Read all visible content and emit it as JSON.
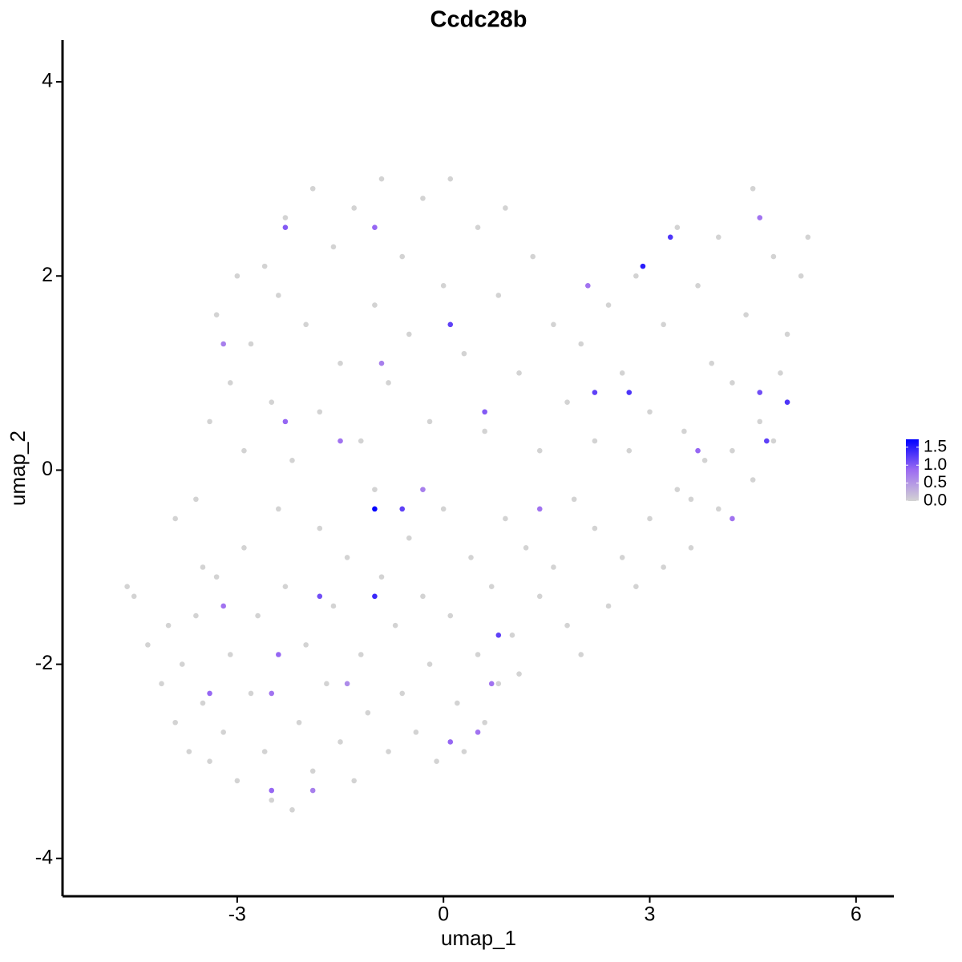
{
  "chart_data": {
    "type": "scatter",
    "title": "Ccdc28b",
    "x_label": "umap_1",
    "y_label": "umap_2",
    "xlim": [
      -5.54,
      6.55
    ],
    "xticks": [
      -3,
      0,
      3,
      6
    ],
    "ylim": [
      -4.39,
      4.43
    ],
    "yticks": [
      -4,
      -2,
      0,
      2,
      4
    ],
    "color_scale": [
      "#d3d3d3",
      "#9d6cf2",
      "#0000ff"
    ],
    "color_lim": [
      0,
      1.72
    ],
    "color_ticks": [
      {
        "value": 0,
        "label": "0.0"
      },
      0.5,
      {
        "value": 1,
        "label": "1.0"
      },
      1.5
    ],
    "x": [
      -4.6,
      -4.5,
      -4.3,
      -4.1,
      -4.0,
      -3.9,
      -3.8,
      -3.7,
      -3.6,
      -3.5,
      -3.4,
      -3.3,
      -3.2,
      -3.1,
      -3.0,
      -2.9,
      -2.8,
      -2.7,
      -2.6,
      -2.5,
      -2.4,
      -2.3,
      -2.2,
      -2.1,
      -2.0,
      -1.9,
      -1.8,
      -1.7,
      -1.6,
      -1.5,
      -1.4,
      -1.3,
      -1.2,
      -1.1,
      -1.0,
      -0.9,
      -0.8,
      -0.7,
      -0.6,
      -0.5,
      -0.4,
      -0.3,
      -0.2,
      -0.1,
      0.0,
      0.1,
      0.2,
      0.3,
      0.4,
      0.5,
      0.6,
      0.7,
      0.8,
      0.9,
      1.0,
      1.1,
      1.2,
      1.4,
      1.6,
      1.8,
      2.0,
      2.2,
      2.4,
      2.6,
      2.8,
      3.0,
      3.2,
      3.4,
      3.6,
      3.8,
      4.0,
      4.2,
      4.5,
      4.8,
      5.0,
      -3.4,
      -3.3,
      -3.1,
      -3.0,
      -2.9,
      -2.8,
      -2.6,
      -2.5,
      -2.4,
      -2.3,
      -2.2,
      -2.0,
      -1.9,
      -1.8,
      -1.6,
      -1.5,
      -1.3,
      -1.2,
      -1.0,
      -0.9,
      -0.8,
      -0.6,
      -0.5,
      -0.3,
      -0.2,
      0.0,
      0.1,
      0.3,
      0.5,
      0.6,
      0.8,
      0.9,
      1.1,
      1.3,
      1.4,
      1.6,
      1.8,
      2.0,
      2.2,
      2.4,
      2.6,
      2.8,
      3.0,
      3.2,
      3.4,
      3.5,
      3.7,
      3.9,
      4.0,
      4.2,
      4.4,
      4.5,
      4.6,
      4.8,
      5.0,
      5.2,
      5.3,
      4.9,
      3.6,
      2.7,
      1.9,
      -3.9,
      -3.6,
      -3.5,
      -3.2,
      -2.3,
      -1.0,
      0.1,
      -1.5,
      -1.0,
      -0.6,
      -1.0,
      -1.8,
      -2.5,
      -3.4,
      -2.5,
      -1.9,
      0.1,
      0.8,
      0.5,
      2.1,
      2.9,
      3.3,
      2.2,
      2.7,
      4.6,
      4.7,
      5.0,
      4.6,
      3.7,
      0.6,
      -2.3,
      -0.3,
      1.4,
      -3.2,
      -2.4,
      0.7,
      -1.4,
      -0.9,
      4.2
    ],
    "y": [
      -1.2,
      -1.3,
      -1.8,
      -2.2,
      -1.6,
      -2.6,
      -2.0,
      -2.9,
      -1.5,
      -2.4,
      -3.0,
      -1.1,
      -2.7,
      -1.9,
      -3.2,
      -0.8,
      -2.3,
      -1.5,
      -2.9,
      -3.4,
      -0.4,
      -1.2,
      -3.5,
      -2.6,
      -1.8,
      -3.1,
      -0.6,
      -2.2,
      -1.4,
      -2.8,
      -0.9,
      -3.2,
      -1.9,
      -2.5,
      -0.2,
      -1.1,
      -2.9,
      -1.6,
      -2.3,
      -0.7,
      -2.7,
      -1.3,
      -2.0,
      -3.0,
      -0.4,
      -1.5,
      -2.4,
      -2.9,
      -0.9,
      -1.9,
      -2.6,
      -1.2,
      -2.2,
      -0.5,
      -1.7,
      -2.1,
      -0.8,
      -1.3,
      -1.0,
      -1.6,
      -1.9,
      -0.6,
      -1.4,
      -0.9,
      -1.2,
      -0.5,
      -1.0,
      -0.2,
      -0.8,
      0.1,
      -0.4,
      0.2,
      -0.1,
      0.3,
      0.7,
      0.5,
      1.6,
      0.9,
      2.0,
      0.2,
      1.3,
      2.1,
      0.7,
      1.8,
      2.6,
      0.1,
      1.5,
      2.9,
      0.6,
      2.3,
      1.1,
      2.7,
      0.3,
      1.7,
      3.0,
      0.9,
      2.2,
      1.4,
      2.8,
      0.5,
      1.9,
      3.0,
      1.2,
      2.5,
      0.4,
      1.8,
      2.7,
      1.0,
      2.2,
      0.2,
      1.5,
      0.7,
      1.3,
      0.3,
      1.7,
      1.0,
      2.0,
      0.6,
      1.5,
      2.5,
      0.4,
      1.9,
      1.1,
      2.4,
      0.9,
      1.6,
      2.9,
      0.5,
      2.2,
      1.4,
      2.0,
      2.4,
      1.0,
      -0.3,
      0.2,
      -0.3,
      -0.5,
      -0.3,
      -1.0,
      1.3,
      2.5,
      2.5,
      1.5,
      0.3,
      -0.4,
      -0.4,
      -1.3,
      -1.3,
      -2.3,
      -2.3,
      -3.3,
      -3.3,
      -2.8,
      -1.7,
      -2.7,
      1.9,
      2.1,
      2.4,
      0.8,
      0.8,
      0.8,
      0.3,
      0.7,
      2.6,
      0.2,
      0.6,
      0.5,
      -0.2,
      -0.4,
      -1.4,
      -1.9,
      -2.2,
      -2.2,
      1.1,
      -0.5
    ],
    "values": [
      0,
      0,
      0,
      0,
      0,
      0,
      0,
      0,
      0,
      0,
      0,
      0,
      0,
      0,
      0,
      0,
      0,
      0,
      0,
      0,
      0,
      0,
      0,
      0,
      0,
      0,
      0,
      0,
      0,
      0,
      0,
      0,
      0,
      0,
      0,
      0,
      0,
      0,
      0,
      0,
      0,
      0,
      0,
      0,
      0,
      0,
      0,
      0,
      0,
      0,
      0,
      0,
      0,
      0,
      0,
      0,
      0,
      0,
      0,
      0,
      0,
      0,
      0,
      0,
      0,
      0,
      0,
      0,
      0,
      0,
      0,
      0,
      0,
      0,
      0,
      0,
      0,
      0,
      0,
      0,
      0,
      0,
      0,
      0,
      0,
      0,
      0,
      0,
      0,
      0,
      0,
      0,
      0,
      0,
      0,
      0,
      0,
      0,
      0,
      0,
      0,
      0,
      0,
      0,
      0,
      0,
      0,
      0,
      0,
      0,
      0,
      0,
      0,
      0,
      0,
      0,
      0,
      0,
      0,
      0,
      0,
      0,
      0,
      0,
      0,
      0,
      0,
      0,
      0,
      0,
      0,
      0,
      0,
      0,
      0,
      0,
      0,
      0,
      0,
      0.7,
      1.0,
      0.9,
      1.2,
      0.8,
      1.7,
      1.2,
      1.4,
      1.1,
      0.8,
      0.9,
      0.9,
      0.7,
      0.9,
      1.2,
      0.8,
      0.8,
      1.5,
      1.3,
      1.2,
      1.3,
      1.1,
      1.2,
      1.3,
      0.8,
      0.9,
      1.0,
      0.9,
      0.7,
      0.8,
      0.8,
      0.9,
      0.8,
      0.6,
      0.7,
      0.8
    ]
  }
}
